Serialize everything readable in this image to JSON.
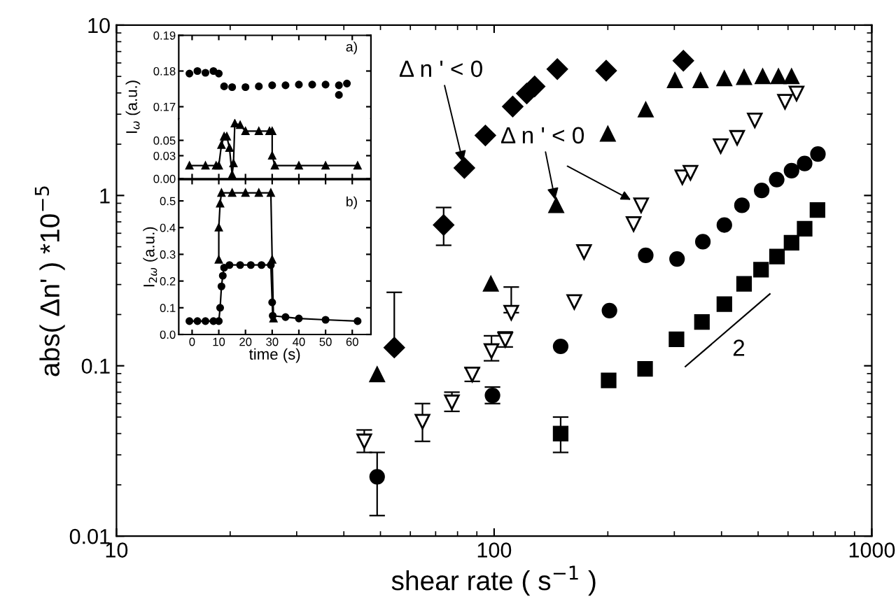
{
  "chart_data": [
    {
      "type": "scatter",
      "xlabel": "shear rate ( s$^{−1}$ )",
      "ylabel": "abs( Δn' ) *10$^{−5}$",
      "log": "xy",
      "xlim": [
        10,
        1000
      ],
      "ylim": [
        0.01,
        10
      ],
      "xticks": [
        10,
        100,
        1000
      ],
      "yticks": [
        0.01,
        0.1,
        1,
        10
      ],
      "grid": false,
      "legend": false,
      "series": [
        {
          "color": "#000000",
          "marker": "square",
          "x": [
            150,
            201,
            251,
            304,
            355,
            407,
            459,
            509,
            561,
            613,
            664,
            718
          ],
          "values": [
            0.04,
            0.082,
            0.096,
            0.143,
            0.181,
            0.23,
            0.303,
            0.367,
            0.438,
            0.528,
            0.638,
            0.822
          ],
          "errors": [
            [
              0.031,
              0.05
            ],
            null,
            null,
            null,
            null,
            null,
            null,
            null,
            null,
            null,
            null,
            null
          ]
        },
        {
          "color": "#000000",
          "marker": "circle",
          "x": [
            49,
            99,
            150,
            202,
            252,
            305,
            357,
            407,
            453,
            511,
            560,
            613,
            664,
            720
          ],
          "values": [
            0.0223,
            0.067,
            0.13,
            0.211,
            0.445,
            0.424,
            0.535,
            0.671,
            0.875,
            1.07,
            1.24,
            1.4,
            1.54,
            1.75
          ],
          "errors": [
            [
              0.0132,
              0.031
            ],
            [
              0.06,
              0.075
            ],
            null,
            null,
            null,
            null,
            null,
            null,
            null,
            null,
            null,
            null,
            null,
            null
          ]
        },
        {
          "color": "#000000",
          "marker": "triangle",
          "x": [
            49,
            98,
            146,
            200,
            252,
            301,
            352,
            407,
            459,
            514,
            566,
            613
          ],
          "values": [
            0.089,
            0.303,
            0.875,
            2.3,
            3.19,
            4.74,
            4.74,
            4.86,
            4.95,
            5.0,
            5.0,
            5.0
          ]
        },
        {
          "color": "#000000",
          "marker": "diamond",
          "x": [
            54.4,
            73.5,
            83.4,
            94.8,
            112,
            122,
            128,
            147,
            198,
            317
          ],
          "values": [
            0.128,
            0.671,
            1.45,
            2.25,
            3.33,
            3.97,
            4.37,
            5.52,
            5.4,
            6.18
          ],
          "errors": [
            [
              0.128,
              0.27
            ],
            [
              0.51,
              0.85
            ],
            null,
            null,
            null,
            null,
            null,
            null,
            null,
            null
          ]
        },
        {
          "color": "#000000",
          "marker": "triangle_down",
          "x": [
            45.3,
            64.6,
            77.3,
            87.5,
            98.4,
            107,
            111,
            163,
            173,
            234,
            245,
            315,
            331,
            398,
            440,
            490,
            589,
            632
          ],
          "values": [
            0.036,
            0.047,
            0.061,
            0.089,
            0.122,
            0.142,
            0.205,
            0.237,
            0.466,
            0.68,
            0.875,
            1.28,
            1.36,
            1.95,
            2.18,
            2.76,
            3.55,
            3.97
          ],
          "errors": [
            [
              0.031,
              0.042
            ],
            [
              0.036,
              0.06
            ],
            [
              0.054,
              0.07
            ],
            [
              0.081,
              0.097
            ],
            [
              0.107,
              0.15
            ],
            [
              0.129,
              0.158
            ],
            [
              0.205,
              0.29
            ],
            null,
            null,
            null,
            null,
            null,
            null,
            null,
            null,
            null,
            null,
            null
          ]
        },
        {
          "type": "line",
          "color": "#000000",
          "marker": "none",
          "x": [
            321,
            537
          ],
          "values": [
            0.099,
            0.264
          ]
        }
      ],
      "annotations": [
        {
          "text": "Δ n ' < 0",
          "x": 83.4,
          "y": 1.45
        },
        {
          "text": "Δ n ' < 0",
          "x": 146,
          "y": 0.875
        },
        "2"
      ]
    },
    {
      "type": "scatter",
      "xlim": [
        -5,
        67
      ],
      "ylim": [
        0.1665,
        0.19
      ],
      "xticks": [
        0,
        10,
        20,
        30,
        40,
        50,
        60
      ],
      "yticks": [
        {
          "value": 0.17,
          "label": "0.17"
        },
        {
          "value": 0.18,
          "label": "0.18"
        },
        {
          "value": 0.19,
          "label": "0.19"
        }
      ],
      "tick_labels": "y",
      "grid": false,
      "series": [
        {
          "color": "#000000",
          "marker": "circle",
          "x": [
            -1,
            2,
            5,
            8,
            10,
            12,
            15,
            20,
            25,
            30,
            35,
            40,
            45,
            50,
            55,
            55,
            58
          ],
          "values": [
            0.1793,
            0.18,
            0.1795,
            0.18,
            0.1793,
            0.1757,
            0.1755,
            0.1755,
            0.1757,
            0.176,
            0.176,
            0.1762,
            0.1762,
            0.1762,
            0.176,
            0.1733,
            0.1765
          ]
        }
      ],
      "annotations": [
        "a)"
      ]
    },
    {
      "type": "line",
      "xlim": [
        -5,
        67
      ],
      "ylim": [
        0,
        0.078
      ],
      "xticks": [
        0,
        10,
        20,
        30,
        40,
        50,
        60
      ],
      "yticks": [
        {
          "value": 0,
          "label": "0.00"
        },
        {
          "value": 0.03,
          "label": "0.03"
        },
        {
          "value": 0.05,
          "label": "0.05"
        }
      ],
      "tick_labels": "y",
      "ylabel": "I$_{ω}$ (a.u.)",
      "grid": false,
      "line_style": "solid",
      "series": [
        {
          "color": "#000000",
          "marker": "triangle",
          "x": [
            -1,
            5,
            9,
            10,
            11,
            12,
            13,
            14,
            15,
            15.5,
            16,
            18,
            20,
            25,
            29,
            30,
            30,
            31,
            40,
            50,
            62
          ],
          "values": [
            0.017,
            0.017,
            0.017,
            0.017,
            0.044,
            0.055,
            0.055,
            0.04,
            0.005,
            0.02,
            0.072,
            0.07,
            0.062,
            0.062,
            0.062,
            0.062,
            0.03,
            0.017,
            0.017,
            0.017,
            0.017
          ]
        }
      ]
    },
    {
      "type": "line",
      "xlim": [
        -5,
        67
      ],
      "ylim": [
        0,
        0.58
      ],
      "xticks": [
        0,
        10,
        20,
        30,
        40,
        50,
        60
      ],
      "yticks": [
        {
          "value": 0,
          "label": "0.0"
        },
        {
          "value": 0.1,
          "label": "0.1"
        },
        {
          "value": 0.2,
          "label": "0.2"
        },
        {
          "value": 0.3,
          "label": "0.3"
        },
        {
          "value": 0.4,
          "label": "0.4"
        },
        {
          "value": 0.5,
          "label": "0.5"
        }
      ],
      "xlabel": "time (s)",
      "ylabel": "I$_{2ω}$ (a.u.)",
      "grid": false,
      "line_style": "solid",
      "series": [
        {
          "color": "#000000",
          "marker": "circle",
          "x": [
            -1,
            2,
            5,
            8,
            10,
            10.5,
            11,
            11.5,
            12,
            14,
            18,
            22,
            26,
            29.5,
            30,
            30.2,
            35,
            40,
            50,
            62
          ],
          "values": [
            0.05,
            0.05,
            0.05,
            0.05,
            0.05,
            0.1,
            0.18,
            0.22,
            0.25,
            0.26,
            0.26,
            0.26,
            0.26,
            0.26,
            0.12,
            0.07,
            0.065,
            0.06,
            0.055,
            0.05
          ]
        },
        {
          "color": "#000000",
          "marker": "triangle",
          "x": [
            10,
            10,
            10.5,
            11,
            15,
            20,
            25,
            29.5,
            30,
            30.5
          ],
          "values": [
            0.28,
            0.4,
            0.49,
            0.53,
            0.53,
            0.53,
            0.53,
            0.53,
            0.28,
            0.06
          ]
        }
      ],
      "annotations": [
        "b)"
      ]
    }
  ]
}
